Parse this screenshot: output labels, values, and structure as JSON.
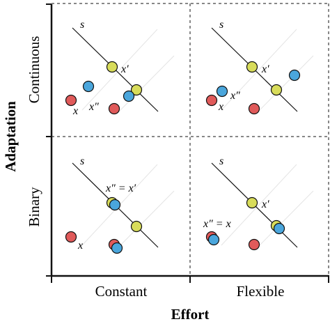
{
  "axes": {
    "x_title": "Effort",
    "y_title": "Adaptation",
    "x_categories": [
      "Constant",
      "Flexible"
    ],
    "y_categories": [
      "Continuous",
      "Binary"
    ]
  },
  "labels": {
    "s": "s",
    "x": "x",
    "x_prime": "x′",
    "x_dprime": "x″",
    "x_dprime_eq_x_prime": "x″ = x′",
    "x_dprime_eq_x": "x″ = x"
  },
  "colors": {
    "red": "#e05a5a",
    "blue": "#4aa6dc",
    "yellow": "#d8dc5a",
    "outline": "#111111",
    "guide": "#e6e6e6",
    "divider": "#111111"
  }
}
